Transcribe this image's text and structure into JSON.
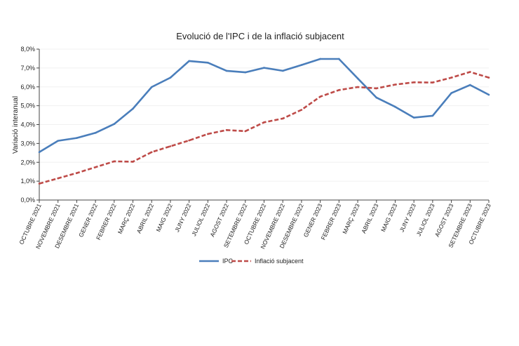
{
  "chart_data": {
    "type": "line",
    "title": "Evolució de l'IPC i de la inflació subjacent",
    "xlabel": "",
    "ylabel": "Variació interanual",
    "ylim": [
      0,
      8
    ],
    "yticks": [
      "0,0%",
      "1,0%",
      "2,0%",
      "3,0%",
      "4,0%",
      "5,0%",
      "6,0%",
      "7,0%",
      "8,0%"
    ],
    "grid": true,
    "legend": "bottom",
    "categories": [
      "OCTUBRE 2021",
      "NOVEMBRE 2021",
      "DESEMBRE 2021",
      "GENER 2022",
      "FEBRER 2022",
      "MARÇ 2022",
      "ABRIL 2022",
      "MAIG 2022",
      "JUNY 2022",
      "JULIOL 2022",
      "AGOST 2022",
      "SETEMBRE 2022",
      "OCTUBRE 2022",
      "NOVEMBRE 2022",
      "DESEMBRE 2022",
      "GENER 2023",
      "FEBRER 2023",
      "MARÇ 2023",
      "ABRIL 2023",
      "MAIG 2023",
      "JUNY 2023",
      "JULIOL 2023",
      "AGOST 2023",
      "SETEMBRE 2023",
      "OCTUBRE 2023"
    ],
    "series": [
      {
        "name": "IPC",
        "color": "#4a7ebb",
        "style": "solid",
        "values": [
          2.54,
          3.14,
          3.29,
          3.56,
          4.03,
          4.84,
          5.99,
          6.49,
          7.37,
          7.28,
          6.85,
          6.77,
          7.01,
          6.85,
          7.16,
          7.48,
          7.48,
          6.45,
          5.43,
          4.94,
          4.37,
          4.47,
          5.67,
          6.1,
          5.58
        ]
      },
      {
        "name": "Inflació subjacent",
        "color": "#be4b48",
        "style": "dashed",
        "values": [
          0.87,
          1.15,
          1.43,
          1.74,
          2.05,
          2.03,
          2.54,
          2.85,
          3.16,
          3.5,
          3.71,
          3.65,
          4.12,
          4.32,
          4.78,
          5.48,
          5.83,
          5.99,
          5.92,
          6.12,
          6.24,
          6.23,
          6.49,
          6.79,
          6.49
        ]
      }
    ]
  }
}
